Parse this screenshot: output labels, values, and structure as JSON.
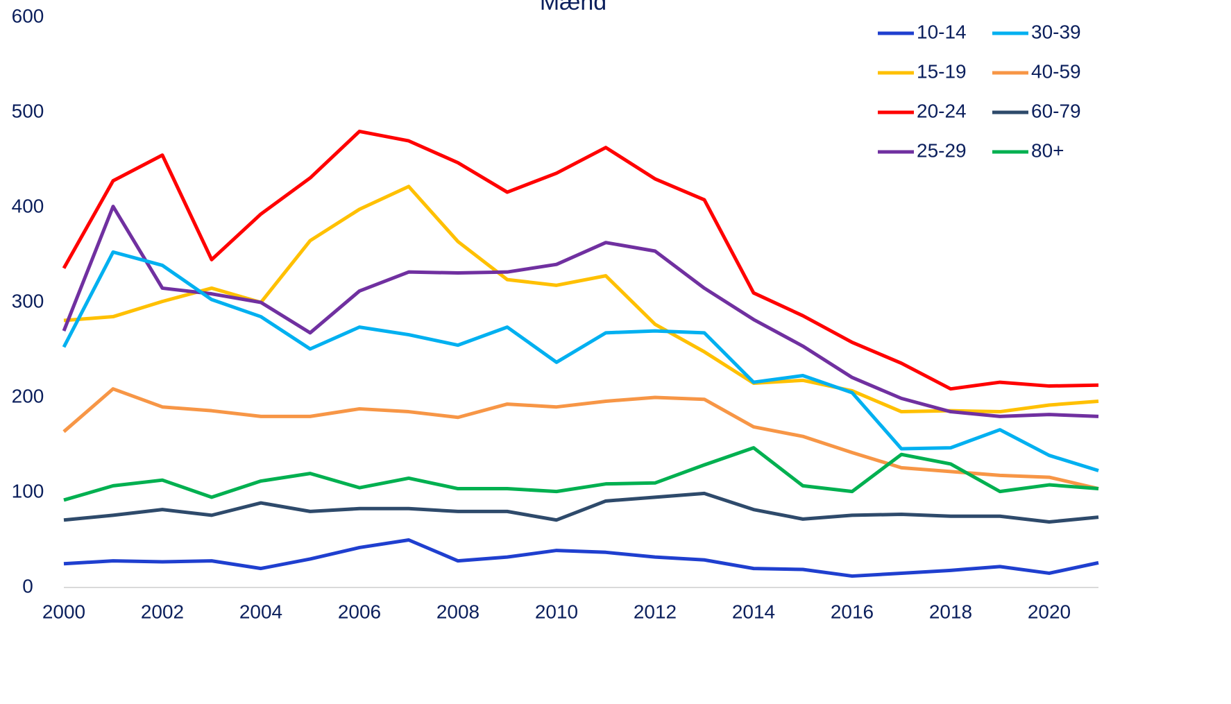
{
  "chart_data": {
    "type": "line",
    "title": "Mænd",
    "x": [
      2000,
      2001,
      2002,
      2003,
      2004,
      2005,
      2006,
      2007,
      2008,
      2009,
      2010,
      2011,
      2012,
      2013,
      2014,
      2015,
      2016,
      2017,
      2018,
      2019,
      2020,
      2021
    ],
    "xlim": [
      2000,
      2021
    ],
    "xticks": [
      2000,
      2002,
      2004,
      2006,
      2008,
      2010,
      2012,
      2014,
      2016,
      2018,
      2020
    ],
    "ylim": [
      0,
      600
    ],
    "yticks": [
      0,
      100,
      200,
      300,
      400,
      500,
      600
    ],
    "grid": false,
    "legend": "top-right",
    "series": [
      {
        "name": "10-14",
        "color": "#1f3fcf",
        "values": [
          25,
          28,
          27,
          28,
          20,
          30,
          42,
          50,
          28,
          32,
          39,
          37,
          32,
          29,
          20,
          19,
          12,
          15,
          18,
          22,
          15,
          26
        ]
      },
      {
        "name": "15-19",
        "color": "#ffc000",
        "values": [
          281,
          285,
          301,
          315,
          300,
          365,
          398,
          422,
          364,
          324,
          318,
          328,
          277,
          248,
          215,
          218,
          207,
          185,
          186,
          185,
          192,
          196
        ]
      },
      {
        "name": "20-24",
        "color": "#ff0000",
        "values": [
          336,
          428,
          455,
          345,
          393,
          431,
          480,
          470,
          447,
          416,
          436,
          463,
          430,
          408,
          310,
          286,
          258,
          236,
          209,
          216,
          212,
          213
        ]
      },
      {
        "name": "25-29",
        "color": "#7030a0",
        "values": [
          270,
          401,
          315,
          309,
          300,
          268,
          312,
          332,
          331,
          332,
          340,
          363,
          354,
          315,
          282,
          254,
          221,
          199,
          185,
          180,
          182,
          180
        ]
      },
      {
        "name": "30-39",
        "color": "#00b0f0",
        "values": [
          253,
          353,
          339,
          303,
          285,
          251,
          274,
          266,
          255,
          274,
          237,
          268,
          270,
          268,
          216,
          223,
          205,
          146,
          147,
          166,
          139,
          123
        ]
      },
      {
        "name": "40-59",
        "color": "#f79646",
        "values": [
          164,
          209,
          190,
          186,
          180,
          180,
          188,
          185,
          179,
          193,
          190,
          196,
          200,
          198,
          169,
          159,
          142,
          126,
          122,
          118,
          116,
          104
        ]
      },
      {
        "name": "60-79",
        "color": "#2e4a6b",
        "values": [
          71,
          76,
          82,
          76,
          89,
          80,
          83,
          83,
          80,
          80,
          71,
          91,
          95,
          99,
          82,
          72,
          76,
          77,
          75,
          75,
          69,
          74
        ]
      },
      {
        "name": "80+",
        "color": "#00b050",
        "values": [
          92,
          107,
          113,
          95,
          112,
          120,
          105,
          115,
          104,
          104,
          101,
          109,
          110,
          129,
          147,
          107,
          101,
          140,
          130,
          101,
          108,
          104
        ]
      }
    ]
  }
}
